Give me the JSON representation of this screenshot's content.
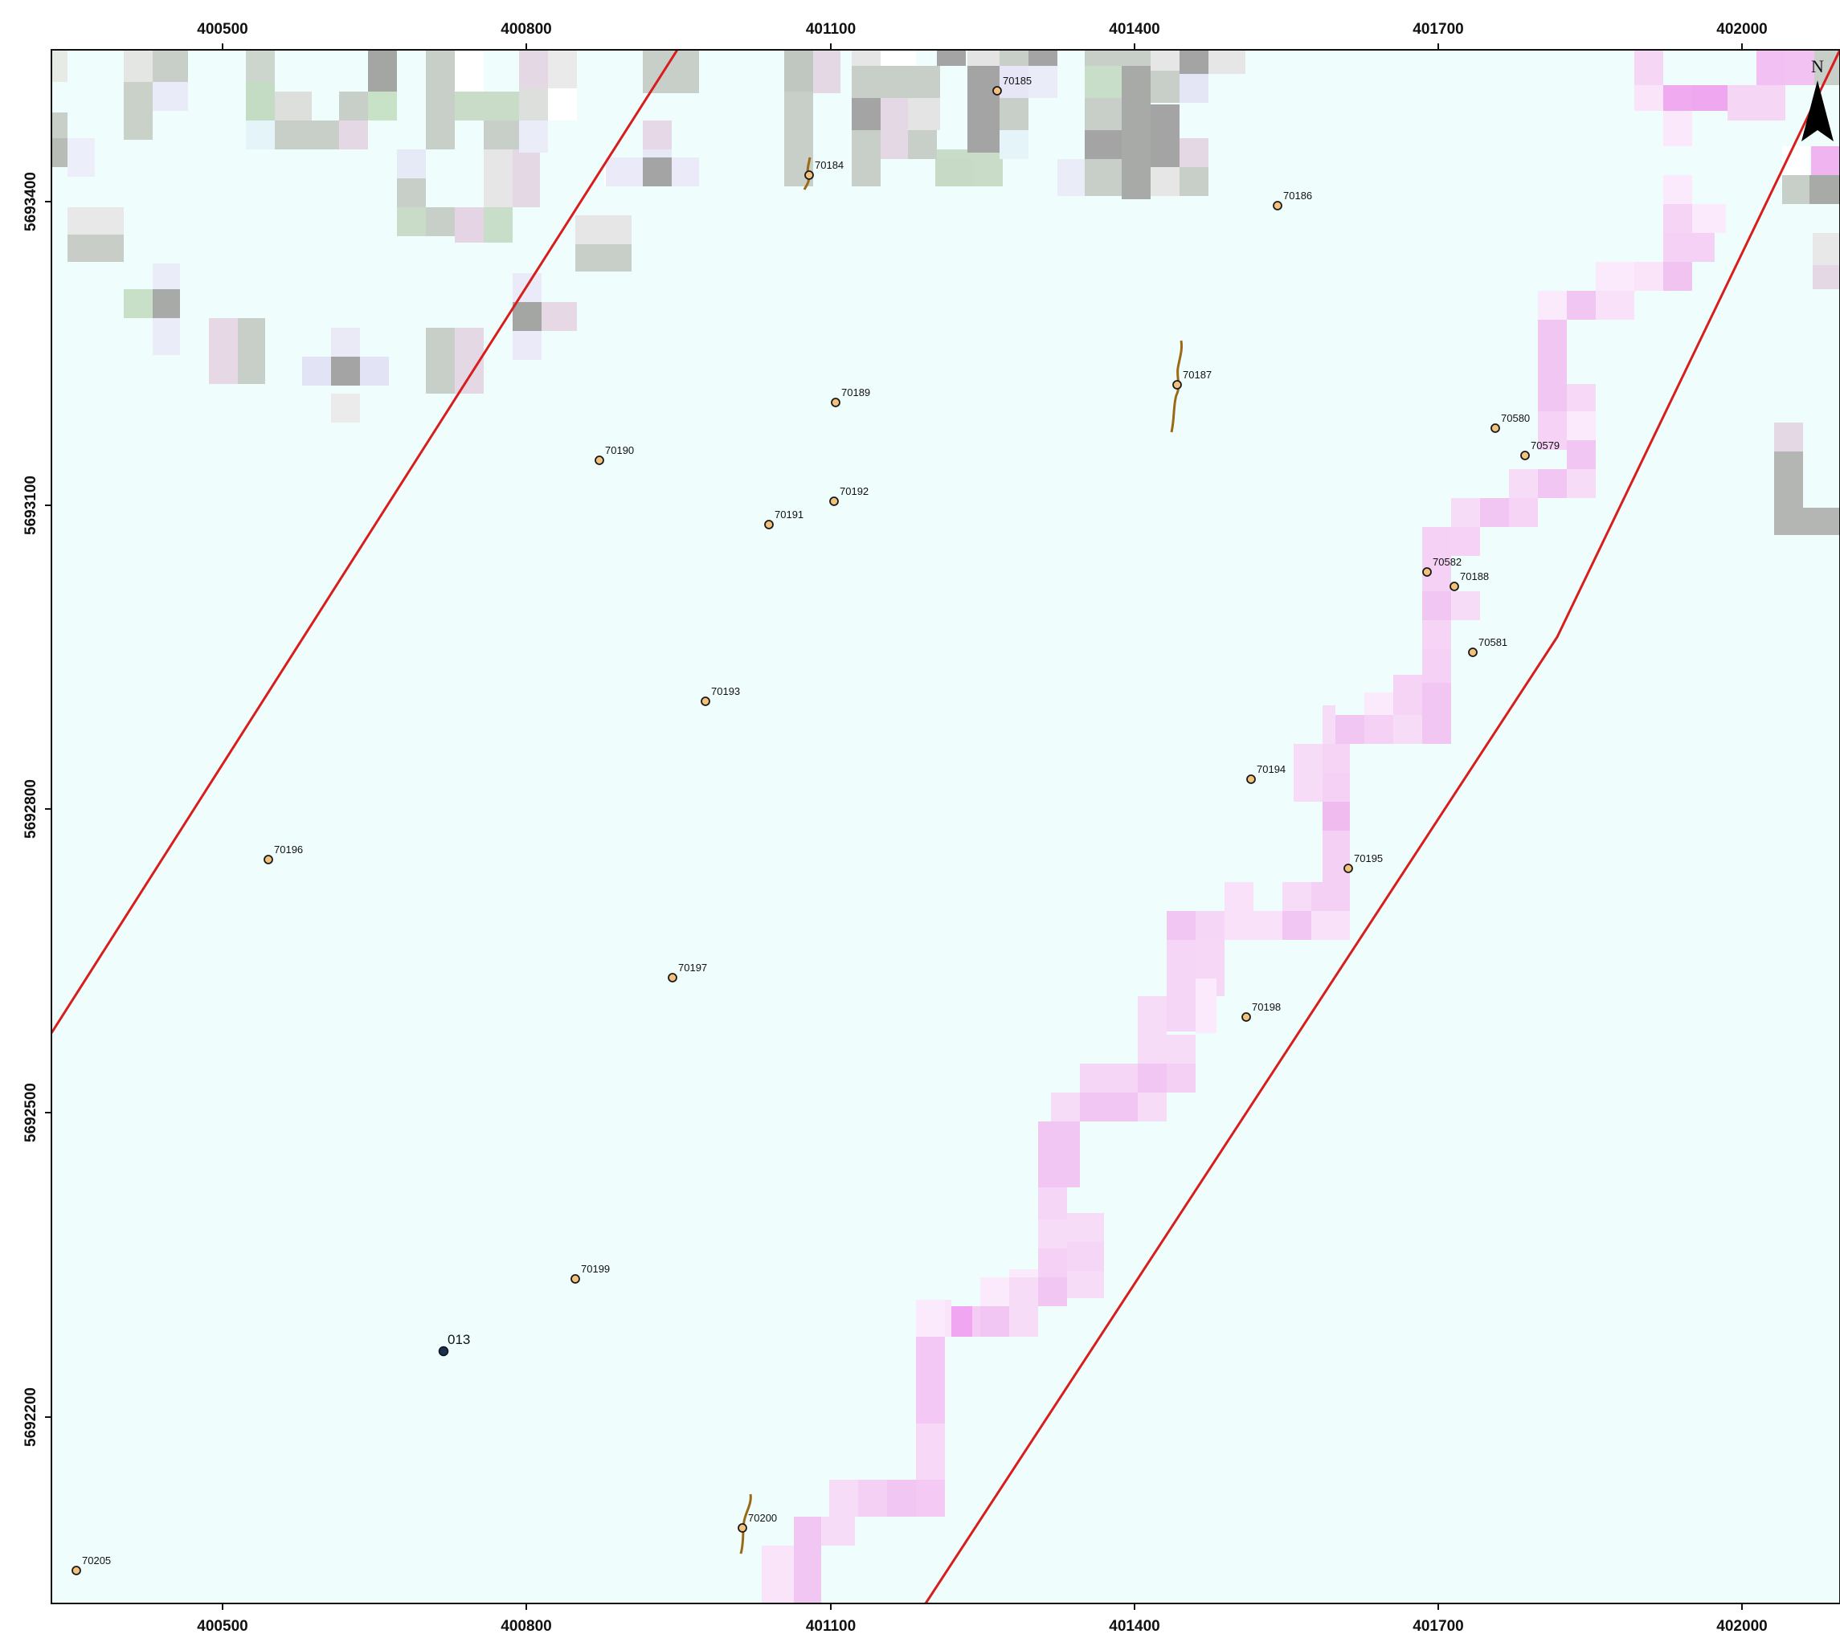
{
  "map": {
    "x_ticks": [
      "400500",
      "400800",
      "401100",
      "401400",
      "401700",
      "402000"
    ],
    "y_ticks": [
      "5693400",
      "5693100",
      "5692800",
      "5692500",
      "5692200"
    ],
    "north_label": "N",
    "colors": {
      "background": "#effefd",
      "boundary": "#d81d1d",
      "point_fill": "#f2c27d",
      "point_stroke": "#1a1a1a",
      "special_point_fill": "#1c2e4a",
      "trace": "#9b6a16",
      "pink_strip": "#f1c8f1",
      "gray_cells": "#b9bdb9"
    },
    "points": [
      {
        "id": "70184"
      },
      {
        "id": "70185"
      },
      {
        "id": "70186"
      },
      {
        "id": "70187"
      },
      {
        "id": "70189"
      },
      {
        "id": "70190"
      },
      {
        "id": "70191"
      },
      {
        "id": "70192"
      },
      {
        "id": "70580"
      },
      {
        "id": "70579"
      },
      {
        "id": "70582"
      },
      {
        "id": "70188"
      },
      {
        "id": "70581"
      },
      {
        "id": "70193"
      },
      {
        "id": "70194"
      },
      {
        "id": "70196"
      },
      {
        "id": "70195"
      },
      {
        "id": "70197"
      },
      {
        "id": "70198"
      },
      {
        "id": "70199"
      },
      {
        "id": "70200"
      },
      {
        "id": "70205"
      }
    ],
    "special_point": {
      "id": "013"
    }
  }
}
